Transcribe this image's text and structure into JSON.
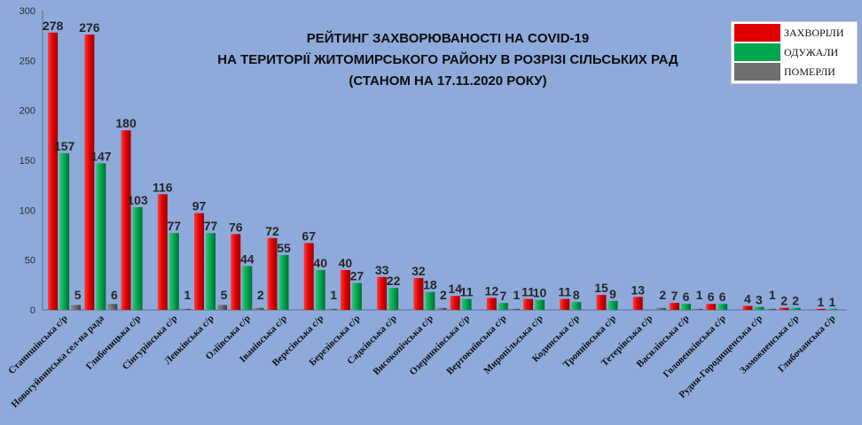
{
  "chart_data": {
    "type": "bar",
    "title": [
      "РЕЙТИНГ ЗАХВОРЮВАНОСТІ НА COVID-19",
      "НА ТЕРИТОРІЇ ЖИТОМИРСЬКОГО РАЙОНУ В РОЗРІЗІ СІЛЬСЬКИХ РАД",
      "(СТАНОМ НА 17.11.2020 РОКУ)"
    ],
    "ylim": [
      0,
      300
    ],
    "yticks": [
      0,
      50,
      100,
      150,
      200,
      250,
      300
    ],
    "legend_position": "top-right",
    "categories": [
      "Станишівська с/р",
      "Новогуйвинська сел-на рада",
      "Глибочицька с/р",
      "Сінгурівська с/р",
      "Левківська с/р",
      "Оліївська с/р",
      "Іванівська с/р",
      "Вересівська с/р",
      "Березівська с/р",
      "Садківська с/р",
      "Високопічська с/р",
      "Озерянківська с/р",
      "Вертокиївська с/р",
      "Миропільська с/р",
      "Кодинська с/р",
      "Троянівська с/р",
      "Тетерівська с/р",
      "Василівська с/р",
      "Головенківська с/р",
      "Рудня-Городищенська с/р",
      "Заможненська с/р",
      "Глибочанська с/р"
    ],
    "series": [
      {
        "name": "ЗАХВОРІЛИ",
        "color": "#e00000",
        "values": [
          278,
          276,
          180,
          116,
          97,
          76,
          72,
          67,
          40,
          33,
          32,
          14,
          12,
          11,
          11,
          15,
          13,
          7,
          6,
          4,
          2,
          1
        ]
      },
      {
        "name": "ОДУЖАЛИ",
        "color": "#00a650",
        "values": [
          157,
          147,
          103,
          77,
          77,
          44,
          55,
          40,
          27,
          22,
          18,
          11,
          7,
          10,
          8,
          9,
          null,
          6,
          6,
          3,
          2,
          1
        ]
      },
      {
        "name": "ПОМЕРЛИ",
        "color": "#707070",
        "values": [
          5,
          6,
          null,
          1,
          5,
          2,
          null,
          1,
          null,
          null,
          2,
          null,
          1,
          null,
          null,
          null,
          2,
          1,
          null,
          1,
          null,
          null
        ]
      }
    ]
  }
}
